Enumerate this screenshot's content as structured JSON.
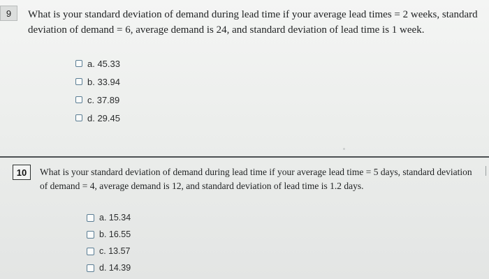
{
  "questions": [
    {
      "number": "9",
      "text": "What is your standard deviation of demand during lead time if your average lead times = 2 weeks, standard deviation of demand = 6, average demand is 24, and standard deviation of lead time is 1 week.",
      "options": [
        {
          "label": "a. 45.33"
        },
        {
          "label": "b. 33.94"
        },
        {
          "label": "c. 37.89"
        },
        {
          "label": "d. 29.45"
        }
      ]
    },
    {
      "number": "10",
      "text": "What is your standard deviation of demand during lead time if your average lead time = 5 days, standard deviation of demand = 4, average demand is 12, and standard deviation of lead time is 1.2 days.",
      "options": [
        {
          "label": "a. 15.34"
        },
        {
          "label": "b. 16.55"
        },
        {
          "label": "c. 13.57"
        },
        {
          "label": "d. 14.39"
        }
      ]
    }
  ],
  "colors": {
    "checkbox_border": "#5a7d94",
    "divider": "#4c5052",
    "text": "#1f2122"
  }
}
